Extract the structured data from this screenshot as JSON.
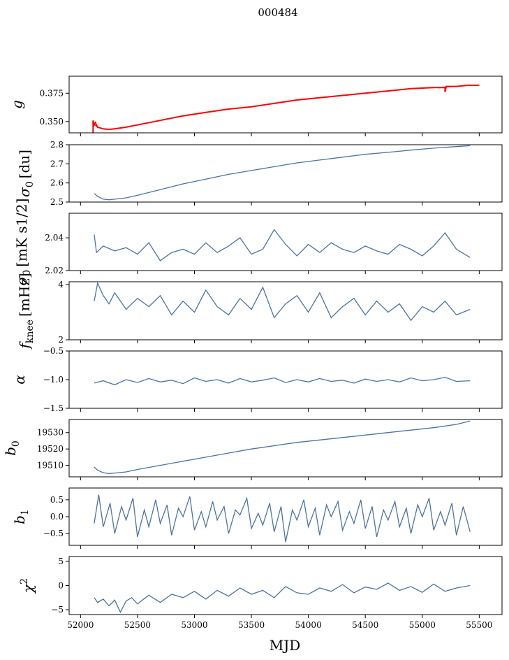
{
  "figure": {
    "suptitle": "000484",
    "xlabel": "MJD"
  },
  "colors": {
    "series": "#4c72a4",
    "overlay": "#ff0000",
    "axis": "#000000"
  },
  "chart_data": [
    {
      "type": "line",
      "ylabel": "g",
      "ylabel_sub": "",
      "ylabel_sup": "",
      "xlim": [
        51900,
        55700
      ],
      "ylim": [
        0.34,
        0.39
      ],
      "yticks": [
        0.35,
        0.375
      ],
      "ytick_labels": [
        "0.350",
        "0.375"
      ],
      "series": [
        {
          "x": [
            52110,
            52150,
            52200,
            52250,
            52300,
            52400,
            52500,
            52700,
            52900,
            53100,
            53300,
            53500,
            53700,
            53900,
            54100,
            54300,
            54500,
            54700,
            54900,
            55100,
            55300,
            55400
          ],
          "y": [
            0.348,
            0.345,
            0.3435,
            0.343,
            0.3435,
            0.345,
            0.347,
            0.351,
            0.355,
            0.358,
            0.361,
            0.363,
            0.366,
            0.369,
            0.371,
            0.373,
            0.375,
            0.377,
            0.379,
            0.38,
            0.381,
            0.382
          ]
        },
        {
          "color": "overlay",
          "x": [
            52110,
            52110,
            52120,
            52130,
            52150,
            52200,
            52250,
            52300,
            52400,
            52500,
            52700,
            52900,
            53100,
            53300,
            53500,
            53700,
            53900,
            54100,
            54300,
            54500,
            54700,
            54900,
            55100,
            55200,
            55200,
            55210,
            55300,
            55400,
            55500
          ],
          "y": [
            0.34,
            0.351,
            0.347,
            0.349,
            0.345,
            0.3435,
            0.343,
            0.3435,
            0.345,
            0.347,
            0.351,
            0.355,
            0.358,
            0.361,
            0.363,
            0.366,
            0.369,
            0.371,
            0.373,
            0.375,
            0.377,
            0.379,
            0.38,
            0.38,
            0.376,
            0.381,
            0.381,
            0.382,
            0.382
          ]
        }
      ]
    },
    {
      "type": "line",
      "ylabel": "σ",
      "ylabel_sub": "0",
      "ylabel_sup": "",
      "ylabel_unit": "[du]",
      "xlim": [
        51900,
        55700
      ],
      "ylim": [
        2.5,
        2.8
      ],
      "yticks": [
        2.5,
        2.6,
        2.7,
        2.8
      ],
      "ytick_labels": [
        "2.5",
        "2.6",
        "2.7",
        "2.8"
      ],
      "series": [
        {
          "x": [
            52120,
            52150,
            52200,
            52250,
            52300,
            52400,
            52500,
            52700,
            52900,
            53100,
            53300,
            53500,
            53700,
            53900,
            54100,
            54300,
            54500,
            54700,
            54900,
            55100,
            55300,
            55420
          ],
          "y": [
            2.545,
            2.53,
            2.515,
            2.512,
            2.515,
            2.522,
            2.535,
            2.565,
            2.595,
            2.62,
            2.645,
            2.665,
            2.685,
            2.705,
            2.72,
            2.735,
            2.75,
            2.76,
            2.772,
            2.782,
            2.79,
            2.795
          ]
        }
      ]
    },
    {
      "type": "line",
      "ylabel": "σ",
      "ylabel_sub": "0",
      "ylabel_sup": "",
      "ylabel_unit": "[mK s1/2]",
      "xlim": [
        51900,
        55700
      ],
      "ylim": [
        2.02,
        2.055
      ],
      "yticks": [
        2.02,
        2.04
      ],
      "ytick_labels": [
        "2.02",
        "2.04"
      ],
      "series": [
        {
          "x": [
            52120,
            52140,
            52200,
            52300,
            52400,
            52500,
            52600,
            52700,
            52800,
            52900,
            53000,
            53100,
            53200,
            53300,
            53400,
            53500,
            53600,
            53700,
            53800,
            53900,
            54000,
            54100,
            54200,
            54300,
            54400,
            54500,
            54600,
            54700,
            54800,
            54900,
            55000,
            55100,
            55200,
            55300,
            55420
          ],
          "y": [
            2.042,
            2.031,
            2.035,
            2.032,
            2.034,
            2.03,
            2.037,
            2.026,
            2.031,
            2.033,
            2.03,
            2.037,
            2.031,
            2.035,
            2.04,
            2.03,
            2.033,
            2.045,
            2.036,
            2.029,
            2.036,
            2.031,
            2.037,
            2.033,
            2.031,
            2.035,
            2.032,
            2.03,
            2.036,
            2.033,
            2.029,
            2.035,
            2.043,
            2.033,
            2.028
          ]
        }
      ]
    },
    {
      "type": "line",
      "ylabel": "f",
      "ylabel_sub": "knee",
      "ylabel_sup": "",
      "ylabel_unit": "[mHz]",
      "xlim": [
        51900,
        55700
      ],
      "ylim": [
        2,
        4.1
      ],
      "yticks": [
        2,
        4
      ],
      "ytick_labels": [
        "2",
        "4"
      ],
      "series": [
        {
          "x": [
            52120,
            52150,
            52200,
            52250,
            52300,
            52400,
            52500,
            52600,
            52700,
            52800,
            52900,
            53000,
            53100,
            53200,
            53300,
            53400,
            53500,
            53600,
            53700,
            53800,
            53900,
            54000,
            54100,
            54200,
            54300,
            54400,
            54500,
            54600,
            54700,
            54800,
            54900,
            55000,
            55100,
            55200,
            55300,
            55420
          ],
          "y": [
            3.4,
            4.05,
            3.6,
            3.3,
            3.7,
            3.1,
            3.5,
            3.2,
            3.6,
            2.9,
            3.4,
            3.0,
            3.8,
            3.2,
            2.9,
            3.5,
            3.1,
            3.9,
            2.8,
            3.3,
            3.6,
            3.0,
            3.7,
            2.8,
            3.2,
            3.5,
            2.9,
            3.4,
            3.0,
            3.3,
            2.7,
            3.2,
            3.0,
            3.4,
            2.9,
            3.1
          ]
        }
      ]
    },
    {
      "type": "line",
      "ylabel": "α",
      "ylabel_sub": "",
      "ylabel_sup": "",
      "xlim": [
        51900,
        55700
      ],
      "ylim": [
        -1.5,
        -0.5
      ],
      "yticks": [
        -1.5,
        -1.0,
        -0.5
      ],
      "ytick_labels": [
        "−1.5",
        "−1.0",
        "−0.5"
      ],
      "series": [
        {
          "x": [
            52120,
            52200,
            52300,
            52400,
            52500,
            52600,
            52700,
            52800,
            52900,
            53000,
            53100,
            53200,
            53300,
            53400,
            53500,
            53600,
            53700,
            53800,
            53900,
            54000,
            54100,
            54200,
            54300,
            54400,
            54500,
            54600,
            54700,
            54800,
            54900,
            55000,
            55100,
            55200,
            55300,
            55420
          ],
          "y": [
            -1.06,
            -1.02,
            -1.09,
            -1.0,
            -1.05,
            -0.98,
            -1.04,
            -1.01,
            -1.07,
            -0.97,
            -1.03,
            -1.0,
            -1.06,
            -0.98,
            -1.04,
            -1.01,
            -0.97,
            -1.05,
            -1.0,
            -1.04,
            -0.98,
            -1.03,
            -1.01,
            -1.06,
            -0.99,
            -1.03,
            -1.0,
            -1.04,
            -0.97,
            -1.02,
            -1.0,
            -0.96,
            -1.03,
            -1.02
          ]
        }
      ]
    },
    {
      "type": "line",
      "ylabel": "b",
      "ylabel_sub": "0",
      "ylabel_sup": "",
      "xlim": [
        51900,
        55700
      ],
      "ylim": [
        19503,
        19538
      ],
      "yticks": [
        19510,
        19520,
        19530
      ],
      "ytick_labels": [
        "19510",
        "19520",
        "19530"
      ],
      "series": [
        {
          "x": [
            52120,
            52150,
            52200,
            52250,
            52300,
            52400,
            52500,
            52700,
            52900,
            53100,
            53300,
            53500,
            53700,
            53900,
            54100,
            54300,
            54500,
            54700,
            54900,
            55100,
            55300,
            55420
          ],
          "y": [
            19509,
            19507,
            19505.5,
            19505,
            19505.3,
            19506,
            19507.5,
            19510,
            19512.5,
            19515,
            19517.5,
            19520,
            19522,
            19524,
            19525.5,
            19527,
            19528.5,
            19530,
            19531.5,
            19533,
            19535,
            19537
          ]
        }
      ]
    },
    {
      "type": "line",
      "ylabel": "b",
      "ylabel_sub": "1",
      "ylabel_sup": "",
      "xlim": [
        51900,
        55700
      ],
      "ylim": [
        -0.85,
        0.85
      ],
      "yticks": [
        -0.5,
        0.0,
        0.5
      ],
      "ytick_labels": [
        "−0.5",
        "0.0",
        "0.5"
      ],
      "series": [
        {
          "x": [
            52120,
            52160,
            52200,
            52260,
            52300,
            52360,
            52400,
            52460,
            52500,
            52560,
            52600,
            52660,
            52700,
            52760,
            52800,
            52860,
            52900,
            52960,
            53000,
            53060,
            53100,
            53160,
            53200,
            53260,
            53300,
            53360,
            53400,
            53460,
            53500,
            53560,
            53600,
            53660,
            53700,
            53760,
            53800,
            53860,
            53900,
            53960,
            54000,
            54060,
            54100,
            54160,
            54200,
            54260,
            54300,
            54360,
            54400,
            54460,
            54500,
            54560,
            54600,
            54660,
            54700,
            54760,
            54800,
            54860,
            54900,
            54960,
            55000,
            55060,
            55100,
            55160,
            55200,
            55260,
            55300,
            55360,
            55420
          ],
          "y": [
            -0.2,
            0.65,
            -0.3,
            0.4,
            -0.5,
            0.3,
            -0.1,
            0.55,
            -0.6,
            0.2,
            -0.3,
            0.5,
            -0.2,
            0.35,
            -0.55,
            0.25,
            0.0,
            0.6,
            -0.4,
            0.15,
            -0.3,
            0.45,
            -0.1,
            0.3,
            -0.5,
            0.2,
            0.05,
            0.55,
            -0.35,
            0.1,
            -0.25,
            0.4,
            -0.45,
            0.3,
            -0.75,
            0.2,
            -0.1,
            0.5,
            -0.3,
            0.25,
            -0.55,
            0.35,
            0.0,
            0.45,
            -0.4,
            0.15,
            -0.2,
            0.5,
            -0.35,
            0.3,
            -0.6,
            0.2,
            -0.1,
            0.45,
            -0.3,
            0.25,
            -0.5,
            0.35,
            0.0,
            0.55,
            -0.4,
            0.15,
            -0.25,
            0.4,
            -0.55,
            0.3,
            -0.45
          ]
        }
      ]
    },
    {
      "type": "line",
      "ylabel": "χ",
      "ylabel_sub": "",
      "ylabel_sup": "2",
      "xlim": [
        51900,
        55700
      ],
      "ylim": [
        -6,
        6
      ],
      "yticks": [
        -5,
        0,
        5
      ],
      "ytick_labels": [
        "−5",
        "0",
        "5"
      ],
      "series": [
        {
          "x": [
            52120,
            52150,
            52200,
            52250,
            52300,
            52350,
            52400,
            52450,
            52500,
            52600,
            52700,
            52800,
            52900,
            53000,
            53100,
            53200,
            53300,
            53400,
            53500,
            53600,
            53700,
            53800,
            53900,
            54000,
            54100,
            54200,
            54300,
            54400,
            54500,
            54600,
            54700,
            54800,
            54900,
            55000,
            55100,
            55200,
            55300,
            55420
          ],
          "y": [
            -2.5,
            -3.5,
            -2.8,
            -4.2,
            -3.0,
            -5.5,
            -3.2,
            -2.5,
            -3.8,
            -2.0,
            -3.5,
            -1.8,
            -2.5,
            -1.2,
            -2.8,
            -1.0,
            -2.2,
            -0.5,
            -1.8,
            -1.0,
            -2.5,
            -0.2,
            -1.5,
            -1.8,
            -0.5,
            -1.2,
            0.2,
            -1.5,
            -0.3,
            -0.8,
            0.5,
            -1.0,
            -0.2,
            -1.4,
            0.3,
            -1.2,
            -0.5,
            0.0
          ]
        }
      ]
    }
  ],
  "xaxis": {
    "ticks": [
      52000,
      52500,
      53000,
      53500,
      54000,
      54500,
      55000,
      55500
    ],
    "tick_labels": [
      "52000",
      "52500",
      "53000",
      "53500",
      "54000",
      "54500",
      "55000",
      "55500"
    ]
  }
}
